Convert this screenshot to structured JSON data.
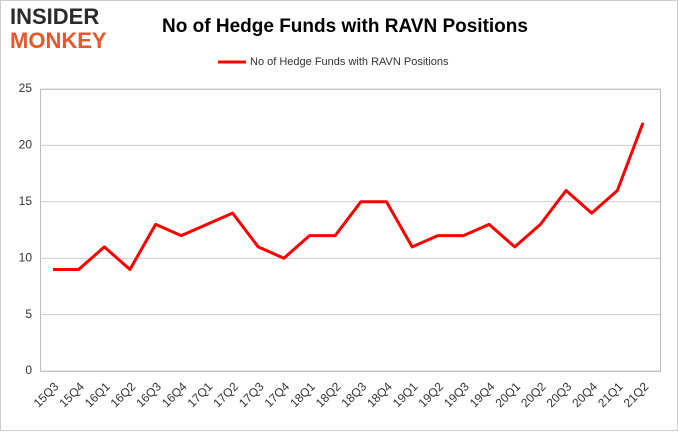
{
  "logo": {
    "line1": "INSIDER",
    "line2": "MONKEY"
  },
  "chart_data": {
    "type": "line",
    "title": "No of Hedge Funds with RAVN Positions",
    "categories": [
      "15Q3",
      "15Q4",
      "16Q1",
      "16Q2",
      "16Q3",
      "16Q4",
      "17Q1",
      "17Q2",
      "17Q3",
      "17Q4",
      "18Q1",
      "18Q2",
      "18Q3",
      "18Q4",
      "19Q1",
      "19Q2",
      "19Q3",
      "19Q4",
      "20Q1",
      "20Q2",
      "20Q3",
      "20Q4",
      "21Q1",
      "21Q2"
    ],
    "series": [
      {
        "name": "No of Hedge Funds with RAVN Positions",
        "color": "#ff0000",
        "values": [
          9,
          9,
          11,
          9,
          13,
          12,
          13,
          14,
          11,
          10,
          12,
          12,
          15,
          15,
          11,
          12,
          12,
          13,
          11,
          13,
          16,
          14,
          16,
          22
        ]
      }
    ],
    "ylim": [
      0,
      25
    ],
    "yticks": [
      0,
      5,
      10,
      15,
      20,
      25
    ],
    "grid": true,
    "legend": "top"
  }
}
